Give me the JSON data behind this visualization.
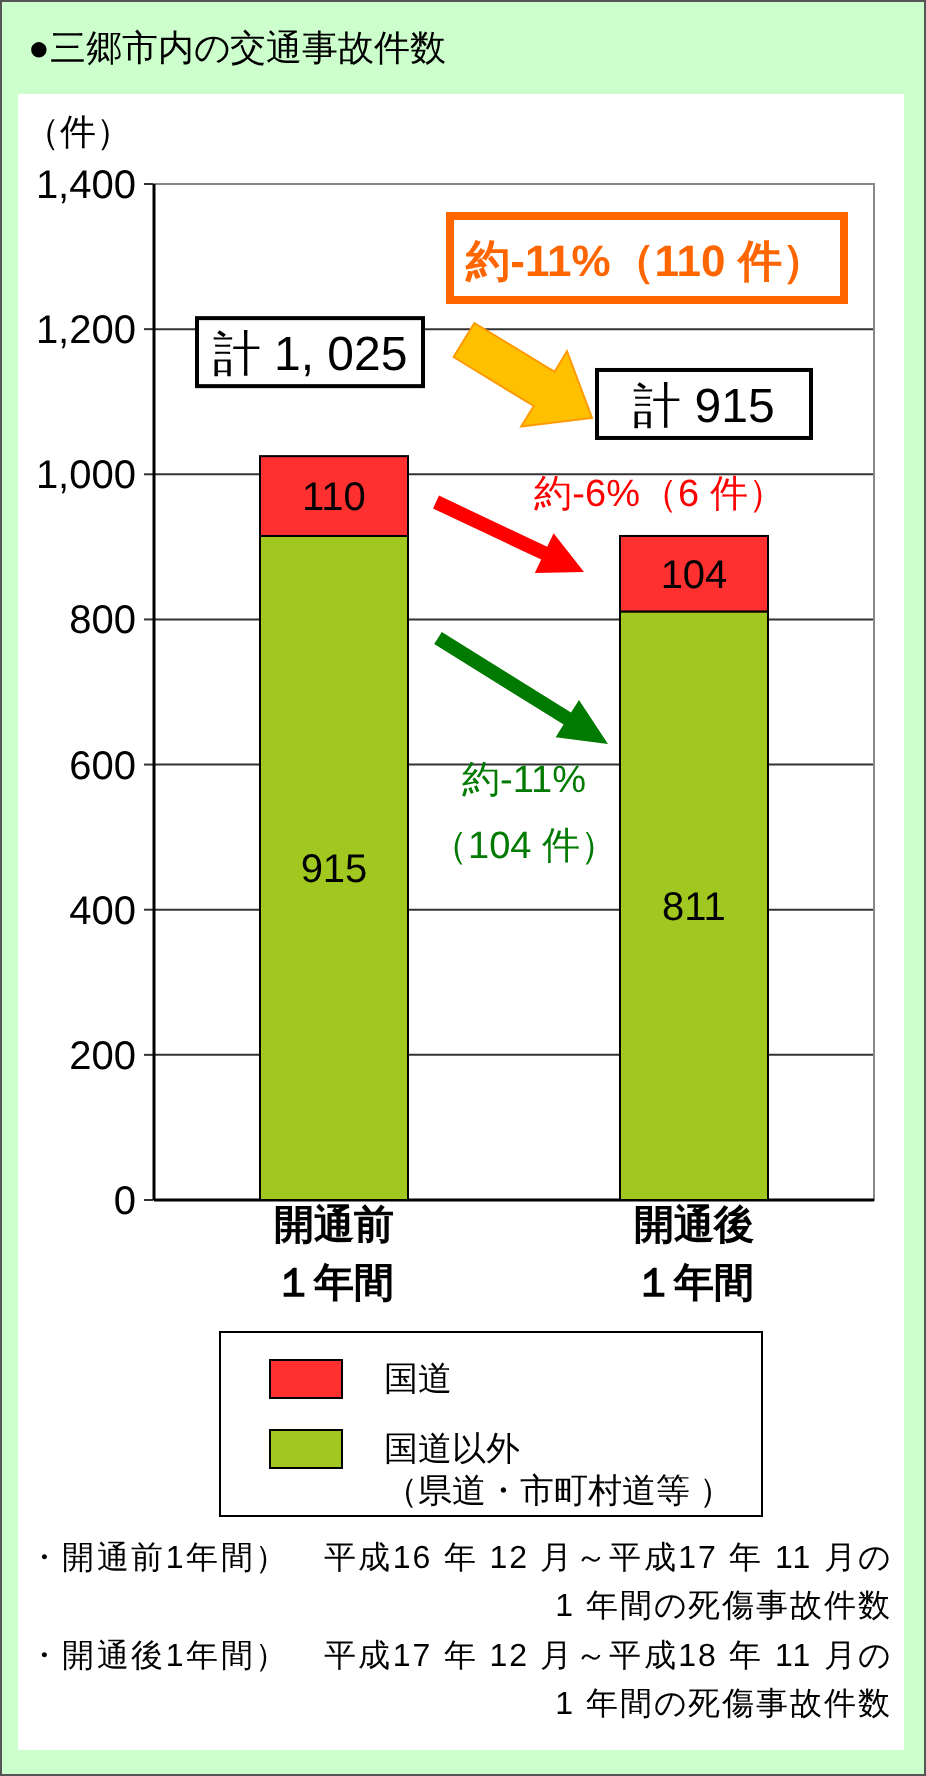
{
  "chart_data": {
    "type": "bar",
    "title": "●三郷市内の交通事故件数",
    "ylabel": "（件）",
    "categories": [
      "開通前１年間",
      "開通後１年間"
    ],
    "stacked": true,
    "series": [
      {
        "name": "国道以外（県道・市町村道等 ）",
        "color": "#a0c820",
        "values": [
          915,
          811
        ]
      },
      {
        "name": "国道",
        "color": "#ff3030",
        "values": [
          110,
          104
        ]
      }
    ],
    "data_labels": true,
    "ylim": [
      0,
      1400
    ],
    "yticks": [
      0,
      200,
      400,
      600,
      800,
      {
        "value": 1000,
        "label": "1,000"
      },
      {
        "value": 1200,
        "label": "1,200"
      },
      {
        "value": 1400,
        "label": "1,400"
      }
    ],
    "grid": "y",
    "legend": "bottom",
    "totals": [
      "計 1, 025",
      "計 915"
    ],
    "annotations": [
      "約-11%（110 件）",
      "約-6%（6 件）",
      "約-11%（104 件）",
      "・開通前1年間）　平成16 年 12 月～平成17 年 11 月の1 年間の死傷事故件数",
      "・開通後1年間）　平成17 年 12 月～平成18 年 11 月の1 年間の死傷事故件数"
    ]
  }
}
